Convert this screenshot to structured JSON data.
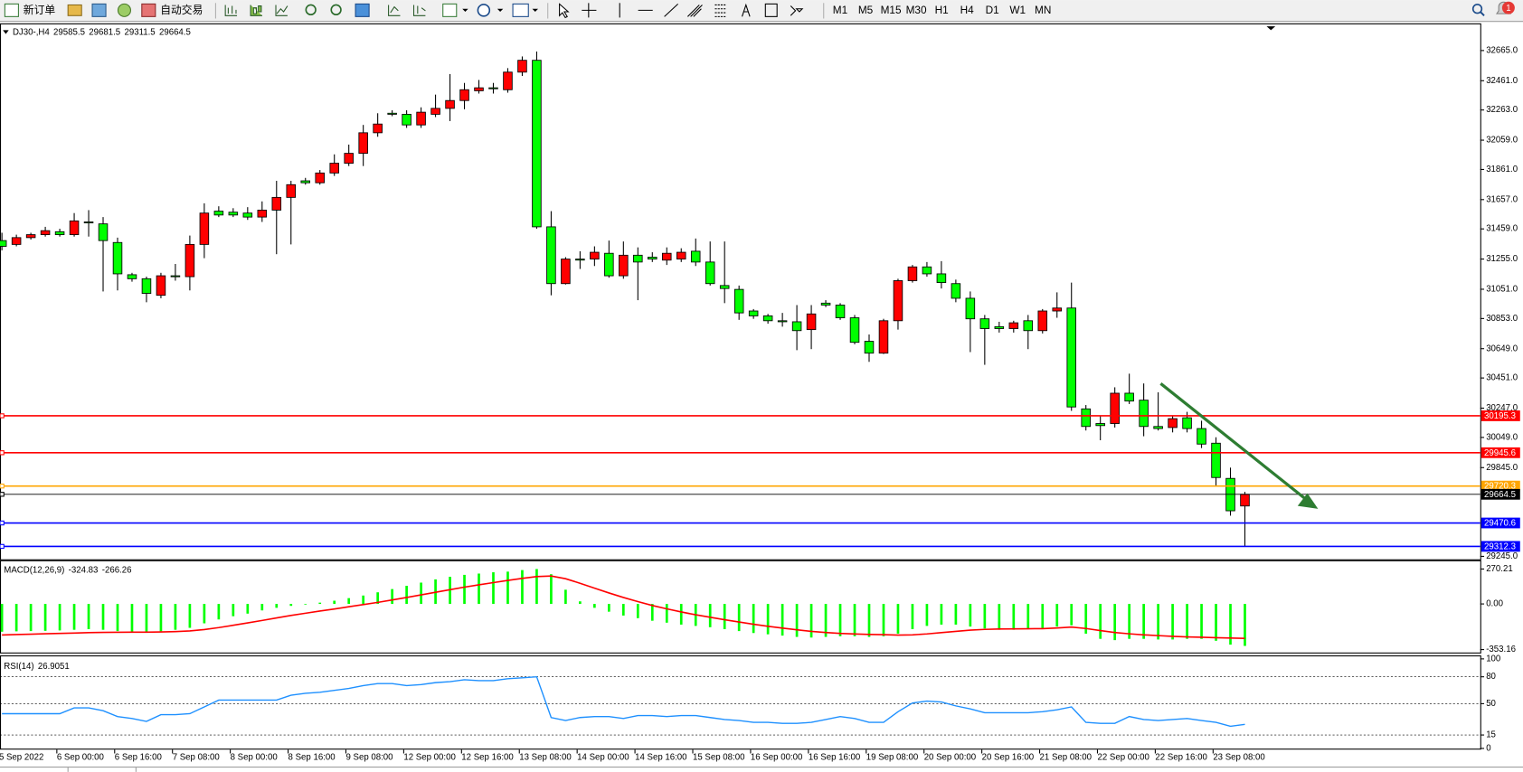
{
  "toolbar": {
    "buttons": [
      "新订单",
      "自动交易"
    ],
    "timeframes": [
      "M1",
      "M5",
      "M15",
      "M30",
      "H1",
      "H4",
      "D1",
      "W1",
      "MN"
    ],
    "notifications": "1"
  },
  "chart_data": [
    {
      "type": "candlestick",
      "symbol": "DJ30-,H4",
      "categories": [
        "5 Sep 2022",
        null,
        null,
        null,
        "6 Sep 00:00",
        null,
        null,
        null,
        "6 Sep 16:00",
        null,
        null,
        null,
        "7 Sep 08:00",
        null,
        null,
        null,
        "8 Sep 00:00",
        null,
        null,
        null,
        "8 Sep 16:00",
        null,
        null,
        null,
        "9 Sep 08:00",
        null,
        null,
        null,
        "12 Sep 00:00",
        null,
        null,
        null,
        "12 Sep 16:00",
        null,
        null,
        null,
        "13 Sep 08:00",
        null,
        null,
        null,
        "14 Sep 00:00",
        null,
        null,
        null,
        "14 Sep 16:00",
        null,
        null,
        null,
        "15 Sep 08:00",
        null,
        null,
        null,
        "16 Sep 00:00",
        null,
        null,
        null,
        "16 Sep 16:00",
        null,
        null,
        null,
        "19 Sep 08:00",
        null,
        null,
        null,
        "20 Sep 00:00",
        null,
        null,
        null,
        "20 Sep 16:00",
        null,
        null,
        null,
        "21 Sep 08:00",
        null,
        null,
        null,
        "22 Sep 00:00",
        null,
        null,
        null,
        "22 Sep 16:00",
        null,
        null,
        null,
        "23 Sep 08:00",
        null,
        null
      ],
      "open": [
        31380,
        31354,
        31400,
        31420,
        31440,
        31420,
        31506,
        31493,
        31367,
        31149,
        31122,
        31010,
        31142,
        31136,
        31354,
        31579,
        31572,
        31566,
        31539,
        31586,
        31672,
        31784,
        31771,
        31837,
        31903,
        31970,
        32109,
        32241,
        32234,
        32162,
        32234,
        32274,
        32327,
        32393,
        32413,
        32400,
        32519,
        32599,
        31473,
        31089,
        31255,
        31255,
        31294,
        31142,
        31281,
        31268,
        31248,
        31255,
        31308,
        31235,
        31076,
        31050,
        30904,
        30871,
        30838,
        30831,
        30778,
        30957,
        30944,
        30858,
        30699,
        30619,
        30838,
        31109,
        31202,
        31155,
        31089,
        30990,
        30851,
        30798,
        30785,
        30838,
        30771,
        30904,
        30924,
        30242,
        30143,
        30143,
        30348,
        30301,
        30123,
        30116,
        30182,
        30109,
        30010,
        29772,
        29585.5
      ],
      "high": [
        31433,
        31420,
        31433,
        31473,
        31460,
        31566,
        31586,
        31539,
        31400,
        31162,
        31136,
        31162,
        31222,
        31414,
        31632,
        31612,
        31599,
        31606,
        31645,
        31784,
        31784,
        31804,
        31857,
        31963,
        32029,
        32162,
        32241,
        32261,
        32261,
        32281,
        32367,
        32506,
        32446,
        32466,
        32446,
        32546,
        32625,
        32658,
        31579,
        31268,
        31308,
        31341,
        31380,
        31374,
        31334,
        31301,
        31334,
        31328,
        31394,
        31374,
        31374,
        31076,
        30917,
        30884,
        30891,
        30944,
        30944,
        30977,
        30957,
        30877,
        30745,
        30851,
        31122,
        31215,
        31235,
        31241,
        31116,
        31036,
        30877,
        30831,
        30838,
        30877,
        30917,
        31030,
        31096,
        30268,
        30196,
        30388,
        30480,
        30414,
        30354,
        30196,
        30222,
        30162,
        30050,
        29845,
        29681.5
      ],
      "low": [
        31314,
        31341,
        31387,
        31407,
        31407,
        31407,
        31407,
        31036,
        31043,
        31102,
        30963,
        30990,
        31109,
        31043,
        31261,
        31539,
        31539,
        31520,
        31506,
        31288,
        31354,
        31758,
        31758,
        31817,
        31884,
        31884,
        32082,
        32221,
        32142,
        32142,
        32215,
        32188,
        32268,
        32374,
        32374,
        32380,
        32493,
        31460,
        31010,
        31083,
        31188,
        31208,
        31129,
        31122,
        30977,
        31235,
        31215,
        31235,
        31208,
        31076,
        30957,
        30844,
        30851,
        30818,
        30798,
        30639,
        30646,
        30930,
        30844,
        30679,
        30560,
        30613,
        30778,
        31096,
        31136,
        31056,
        30963,
        30626,
        30540,
        30758,
        30758,
        30646,
        30752,
        30858,
        30229,
        30096,
        30030,
        30116,
        30275,
        30057,
        30096,
        30083,
        30083,
        29977,
        29719,
        29520,
        29311.5
      ],
      "close": [
        31341,
        31400,
        31420,
        31447,
        31420,
        31513,
        31500,
        31380,
        31155,
        31122,
        31023,
        31142,
        31136,
        31354,
        31566,
        31553,
        31553,
        31539,
        31586,
        31672,
        31758,
        31771,
        31837,
        31903,
        31970,
        32109,
        32168,
        32234,
        32162,
        32248,
        32274,
        32327,
        32400,
        32413,
        32407,
        32519,
        32599,
        31473,
        31089,
        31255,
        31248,
        31301,
        31142,
        31281,
        31235,
        31255,
        31294,
        31301,
        31235,
        31089,
        31056,
        30891,
        30871,
        30838,
        30831,
        30771,
        30884,
        30944,
        30858,
        30692,
        30619,
        30838,
        31109,
        31202,
        31155,
        31096,
        30990,
        30851,
        30785,
        30785,
        30824,
        30771,
        30904,
        30924,
        30255,
        30123,
        30129,
        30348,
        30295,
        30123,
        30109,
        30176,
        30109,
        30004,
        29778,
        29553,
        29664.5
      ],
      "up_color": "#ff0000",
      "down_color": "#00ff00",
      "ylim": [
        29225,
        32842
      ],
      "yticks": [
        {
          "value": 32665,
          "label": "32665.0"
        },
        {
          "value": 32461,
          "label": "32461.0"
        },
        {
          "value": 32263,
          "label": "32263.0"
        },
        {
          "value": 32059,
          "label": "32059.0"
        },
        {
          "value": 31861,
          "label": "31861.0"
        },
        {
          "value": 31657,
          "label": "31657.0"
        },
        {
          "value": 31459,
          "label": "31459.0"
        },
        {
          "value": 31255,
          "label": "31255.0"
        },
        {
          "value": 31051,
          "label": "31051.0"
        },
        {
          "value": 30853,
          "label": "30853.0"
        },
        {
          "value": 30649,
          "label": "30649.0"
        },
        {
          "value": 30451,
          "label": "30451.0"
        },
        {
          "value": 30247,
          "label": "30247.0"
        },
        {
          "value": 30049,
          "label": "30049.0"
        },
        {
          "value": 29845,
          "label": "29845.0"
        },
        {
          "value": 29245,
          "label": "29245.0"
        }
      ],
      "hlines": [
        {
          "value": 30195.3,
          "color": "#ff0000"
        },
        {
          "value": 29945.6,
          "color": "#ff0000"
        },
        {
          "value": 29720.3,
          "color": "#ffa500"
        },
        {
          "value": 29664.5,
          "color": "#000000"
        },
        {
          "value": 29470.6,
          "color": "#0000ff"
        },
        {
          "value": 29312.3,
          "color": "#0000ff"
        }
      ]
    },
    {
      "type": "macd",
      "name": "MACD(12,26,9)",
      "histogram": {
        "color": "#00ff00",
        "values": [
          -215,
          -212,
          -210,
          -208,
          -205,
          -200,
          -195,
          -200,
          -210,
          -215,
          -218,
          -212,
          -200,
          -185,
          -150,
          -120,
          -95,
          -75,
          -50,
          -30,
          -15,
          -5,
          10,
          25,
          45,
          65,
          90,
          115,
          140,
          165,
          190,
          210,
          225,
          235,
          245,
          250,
          262,
          270,
          230,
          110,
          20,
          -30,
          -60,
          -90,
          -110,
          -130,
          -145,
          -160,
          -170,
          -180,
          -195,
          -210,
          -225,
          -235,
          -245,
          -255,
          -260,
          -255,
          -250,
          -250,
          -255,
          -250,
          -230,
          -195,
          -170,
          -160,
          -160,
          -175,
          -190,
          -200,
          -200,
          -195,
          -190,
          -175,
          -165,
          -230,
          -270,
          -280,
          -270,
          -270,
          -275,
          -275,
          -270,
          -270,
          -285,
          -315,
          -324.83
        ]
      },
      "signal": {
        "color": "#ff0000",
        "values": [
          -240,
          -237,
          -234,
          -231,
          -228,
          -225,
          -222,
          -220,
          -219,
          -218,
          -218,
          -217,
          -214,
          -209,
          -198,
          -183,
          -165,
          -147,
          -128,
          -108,
          -89,
          -72,
          -55,
          -39,
          -22,
          -5,
          12,
          31,
          50,
          70,
          90,
          110,
          130,
          148,
          165,
          182,
          198,
          212,
          216,
          195,
          160,
          122,
          85,
          50,
          18,
          -12,
          -38,
          -62,
          -84,
          -103,
          -122,
          -140,
          -157,
          -173,
          -187,
          -200,
          -212,
          -221,
          -228,
          -232,
          -236,
          -238,
          -241,
          -239,
          -232,
          -222,
          -212,
          -203,
          -197,
          -194,
          -193,
          -192,
          -191,
          -186,
          -179,
          -190,
          -206,
          -221,
          -231,
          -239,
          -245,
          -251,
          -255,
          -258,
          -261,
          -264,
          -266.26
        ]
      },
      "ylim": [
        -375.7,
        330.3
      ],
      "yticks": [
        270.21,
        {
          "value": 0,
          "label": "0.00"
        },
        -353.16
      ]
    },
    {
      "type": "line",
      "name": "RSI(14)",
      "color": "#1e90ff",
      "values": [
        38.8,
        38.8,
        38.8,
        38.8,
        38.8,
        45.3,
        45.3,
        42.1,
        35.6,
        33.4,
        30.2,
        37.7,
        37.7,
        38.8,
        46.4,
        54.0,
        54.0,
        54.0,
        54.0,
        54.0,
        59.4,
        61.6,
        62.7,
        64.8,
        67.0,
        70.2,
        72.4,
        72.4,
        70.2,
        71.3,
        73.5,
        74.6,
        76.7,
        75.7,
        75.7,
        77.8,
        78.9,
        80.0,
        34.5,
        31.2,
        34.5,
        35.6,
        35.6,
        33.4,
        36.7,
        36.7,
        35.6,
        36.7,
        36.7,
        34.5,
        32.3,
        31.2,
        29.1,
        29.1,
        28.0,
        28.0,
        29.1,
        32.3,
        35.6,
        33.4,
        29.1,
        29.1,
        41.0,
        50.7,
        52.9,
        51.8,
        47.5,
        44.2,
        39.9,
        39.9,
        39.9,
        39.9,
        41.0,
        43.2,
        46.4,
        29.1,
        28.0,
        28.0,
        35.6,
        32.3,
        31.2,
        32.3,
        33.4,
        31.2,
        29.1,
        24.7,
        26.9051
      ],
      "ylim": [
        -1.3,
        102.8
      ],
      "yticks": [
        100,
        80,
        50,
        15,
        0
      ],
      "levels": [
        80,
        50,
        15
      ]
    }
  ]
}
